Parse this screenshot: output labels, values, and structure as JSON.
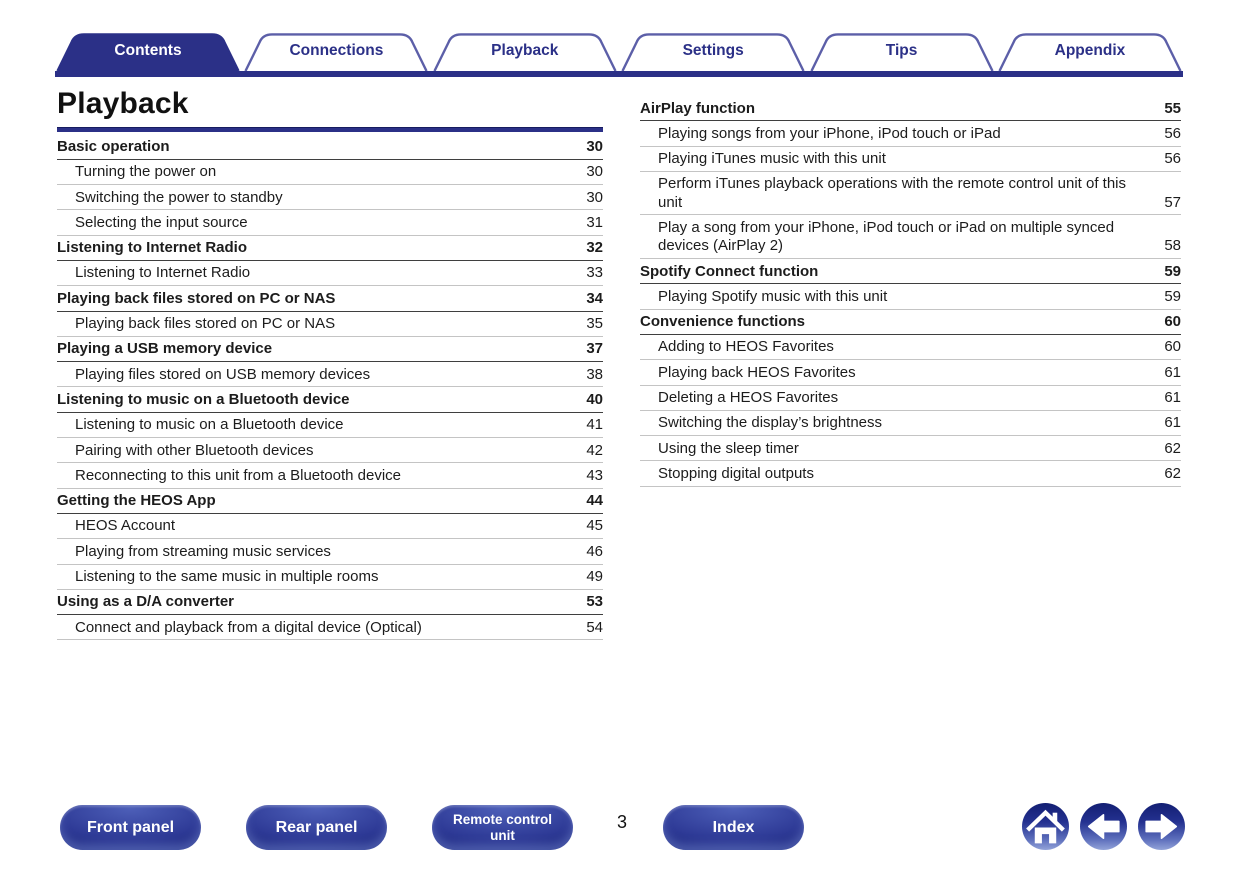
{
  "tabs": [
    {
      "label": "Contents",
      "active": true
    },
    {
      "label": "Connections",
      "active": false
    },
    {
      "label": "Playback",
      "active": false
    },
    {
      "label": "Settings",
      "active": false
    },
    {
      "label": "Tips",
      "active": false
    },
    {
      "label": "Appendix",
      "active": false
    }
  ],
  "page": {
    "title": "Playback",
    "number": "3"
  },
  "toc": {
    "left_sections": [
      {
        "title": "Basic operation",
        "page": "30",
        "items": [
          {
            "label": "Turning the power on",
            "page": "30"
          },
          {
            "label": "Switching the power to standby",
            "page": "30"
          },
          {
            "label": "Selecting the input source",
            "page": "31"
          }
        ]
      },
      {
        "title": "Listening to Internet Radio",
        "page": "32",
        "items": [
          {
            "label": "Listening to Internet Radio",
            "page": "33"
          }
        ]
      },
      {
        "title": "Playing back files stored on PC or NAS",
        "page": "34",
        "items": [
          {
            "label": "Playing back files stored on PC or NAS",
            "page": "35"
          }
        ]
      },
      {
        "title": "Playing a USB memory device",
        "page": "37",
        "items": [
          {
            "label": "Playing files stored on USB memory devices",
            "page": "38"
          }
        ]
      },
      {
        "title": "Listening to music on a Bluetooth device",
        "page": "40",
        "items": [
          {
            "label": "Listening to music on a Bluetooth device",
            "page": "41"
          },
          {
            "label": "Pairing with other Bluetooth devices",
            "page": "42"
          },
          {
            "label": "Reconnecting to this unit from a Bluetooth device",
            "page": "43"
          }
        ]
      },
      {
        "title": "Getting the HEOS App",
        "page": "44",
        "items": [
          {
            "label": "HEOS Account",
            "page": "45"
          },
          {
            "label": "Playing from streaming music services",
            "page": "46"
          },
          {
            "label": "Listening to the same music in multiple rooms",
            "page": "49"
          }
        ]
      },
      {
        "title": "Using as a D/A converter",
        "page": "53",
        "items": [
          {
            "label": "Connect and playback from a digital device (Optical)",
            "page": "54"
          }
        ]
      }
    ],
    "right_sections": [
      {
        "title": "AirPlay function",
        "page": "55",
        "items": [
          {
            "label": "Playing songs from your iPhone, iPod touch or iPad",
            "page": "56"
          },
          {
            "label": "Playing iTunes music with this unit",
            "page": "56"
          },
          {
            "label": "Perform iTunes playback operations with the remote control unit of this unit",
            "page": "57"
          },
          {
            "label": "Play a song from your iPhone, iPod touch or iPad on multiple synced devices (AirPlay 2)",
            "page": "58"
          }
        ]
      },
      {
        "title": "Spotify Connect function",
        "page": "59",
        "items": [
          {
            "label": "Playing Spotify music with this unit",
            "page": "59"
          }
        ]
      },
      {
        "title": "Convenience functions",
        "page": "60",
        "items": [
          {
            "label": "Adding to HEOS Favorites",
            "page": "60"
          },
          {
            "label": "Playing back HEOS Favorites",
            "page": "61"
          },
          {
            "label": "Deleting a HEOS Favorites",
            "page": "61"
          },
          {
            "label": "Switching the display’s brightness",
            "page": "61"
          },
          {
            "label": "Using the sleep timer",
            "page": "62"
          },
          {
            "label": "Stopping digital outputs",
            "page": "62"
          }
        ]
      }
    ]
  },
  "footer": {
    "front_label": "Front panel",
    "rear_label": "Rear panel",
    "remote_label": "Remote control unit",
    "index_label": "Index",
    "icons": [
      "home-icon",
      "back-arrow-icon",
      "forward-arrow-icon"
    ]
  },
  "colors": {
    "accent_navy": "#2b3087",
    "tab_border": "#5c5fa8",
    "section_rule_dark": "#3f3f3f",
    "item_rule_light": "#c4c4c4"
  }
}
